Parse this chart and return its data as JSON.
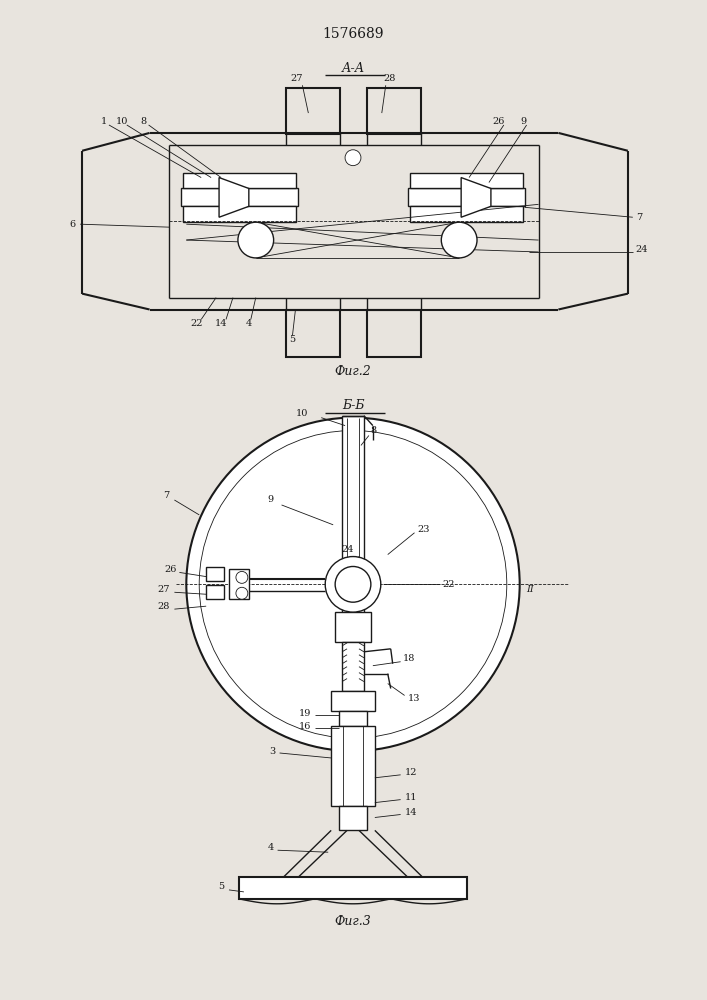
{
  "title": "1576689",
  "fig2_label": "А-А",
  "fig2_caption": "Фиг.2",
  "fig3_section": "Б-Б",
  "fig3_caption": "Фиг.3",
  "bg_color": "#e8e4de",
  "line_color": "#1a1a1a",
  "lw_main": 1.0,
  "lw_heavy": 1.5,
  "lw_thin": 0.6,
  "label_fs": 7,
  "title_fs": 10,
  "caption_fs": 9
}
